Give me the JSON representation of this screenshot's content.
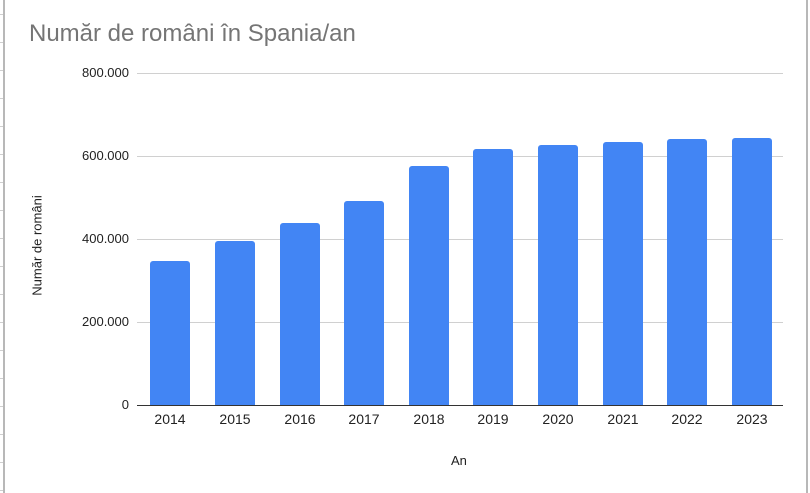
{
  "chart_data": {
    "type": "bar",
    "title": "Număr de români în Spania/an",
    "xlabel": "An",
    "ylabel": "Număr de români",
    "categories": [
      "2014",
      "2015",
      "2016",
      "2017",
      "2018",
      "2019",
      "2020",
      "2021",
      "2022",
      "2023"
    ],
    "values": [
      347000,
      394000,
      439000,
      492000,
      576000,
      617000,
      627000,
      633000,
      640000,
      643000
    ],
    "ylim": [
      0,
      800000
    ],
    "yticks": [
      0,
      200000,
      400000,
      600000,
      800000
    ],
    "ytick_labels": [
      "0",
      "200.000",
      "400.000",
      "600.000",
      "800.000"
    ],
    "grid": true,
    "legend": "none",
    "bar_color": "#4285f4"
  }
}
